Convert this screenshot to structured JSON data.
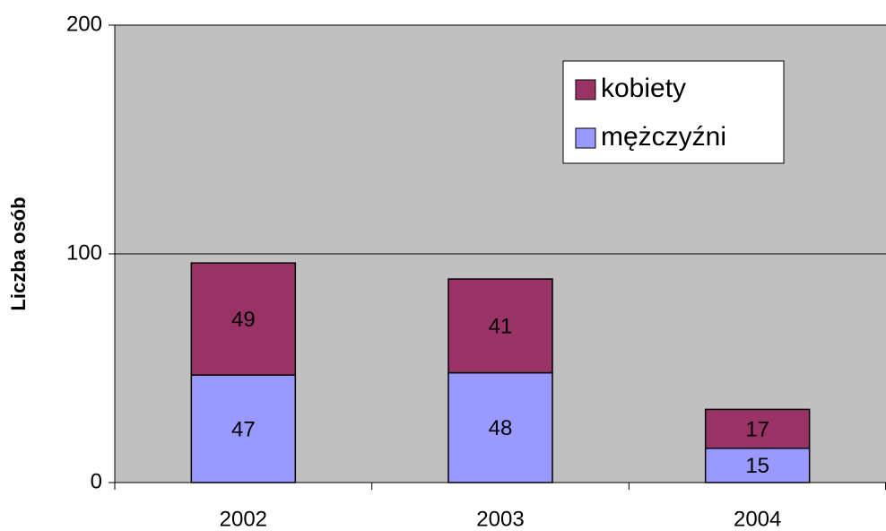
{
  "chart_data": {
    "type": "stacked_bar",
    "y_label": "Liczba osób",
    "categories": [
      "2002",
      "2003",
      "2004"
    ],
    "series": [
      {
        "name": "mężczyźni",
        "color": "#9999ff",
        "values": [
          47,
          48,
          15
        ]
      },
      {
        "name": "kobiety",
        "color": "#993366",
        "values": [
          49,
          41,
          17
        ]
      }
    ],
    "ylim": [
      0,
      200
    ],
    "yticks": [
      0,
      100,
      200
    ],
    "grid": true,
    "legend": "upper right",
    "plot_background": "#c0c0c0"
  }
}
